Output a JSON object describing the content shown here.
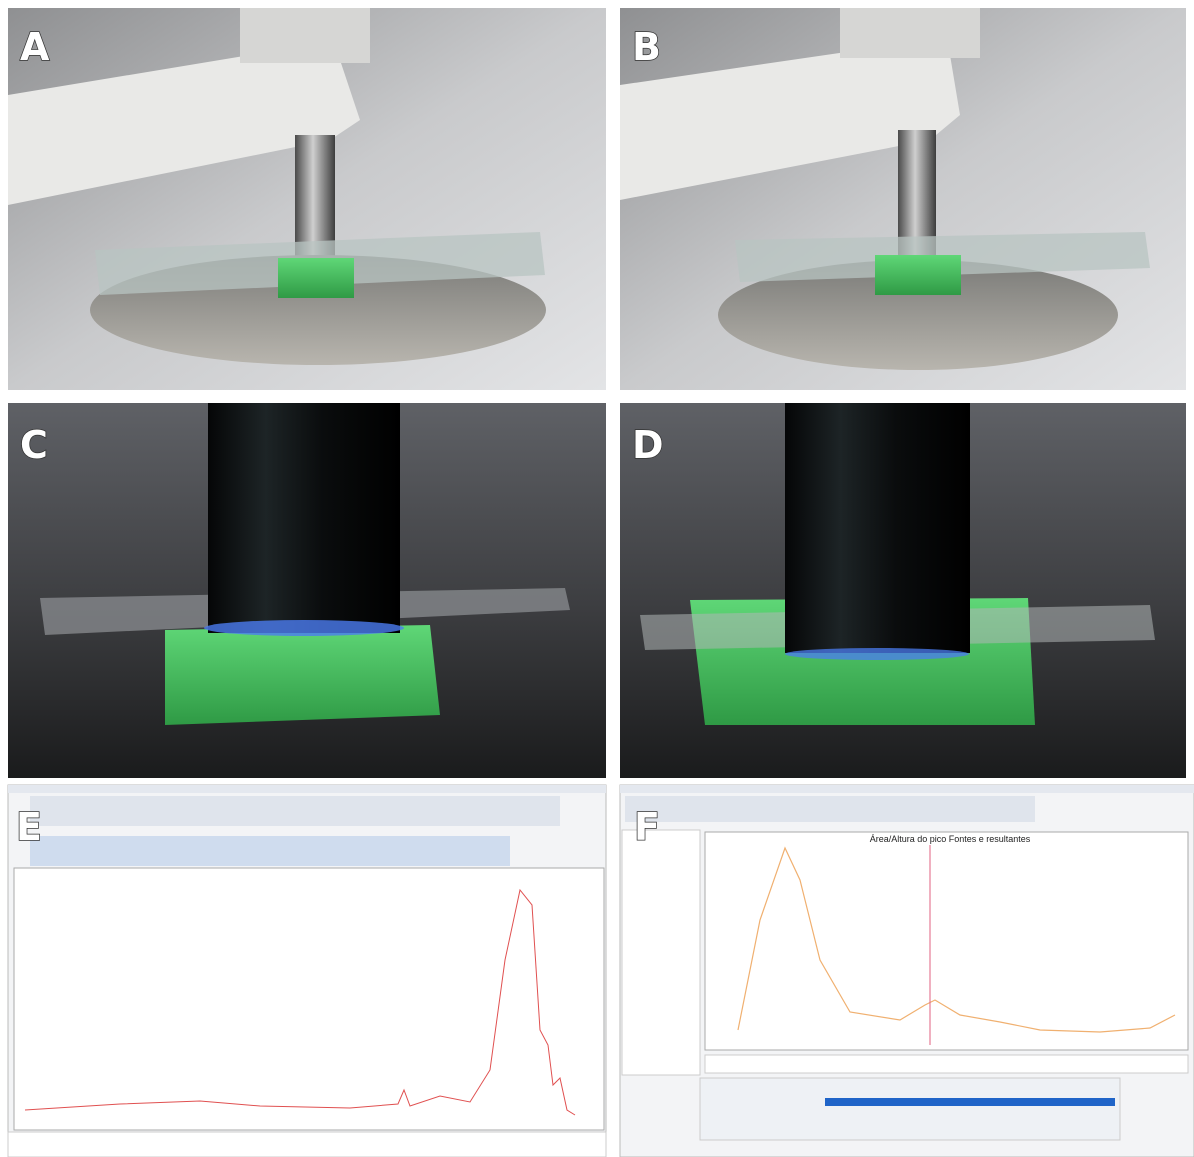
{
  "panels": [
    {
      "label": "A"
    },
    {
      "label": "B"
    },
    {
      "label": "C"
    },
    {
      "label": "D"
    },
    {
      "label": "E"
    },
    {
      "label": "F"
    }
  ],
  "panel_f_title": "Área/Altura do pico Fontes e resultantes"
}
